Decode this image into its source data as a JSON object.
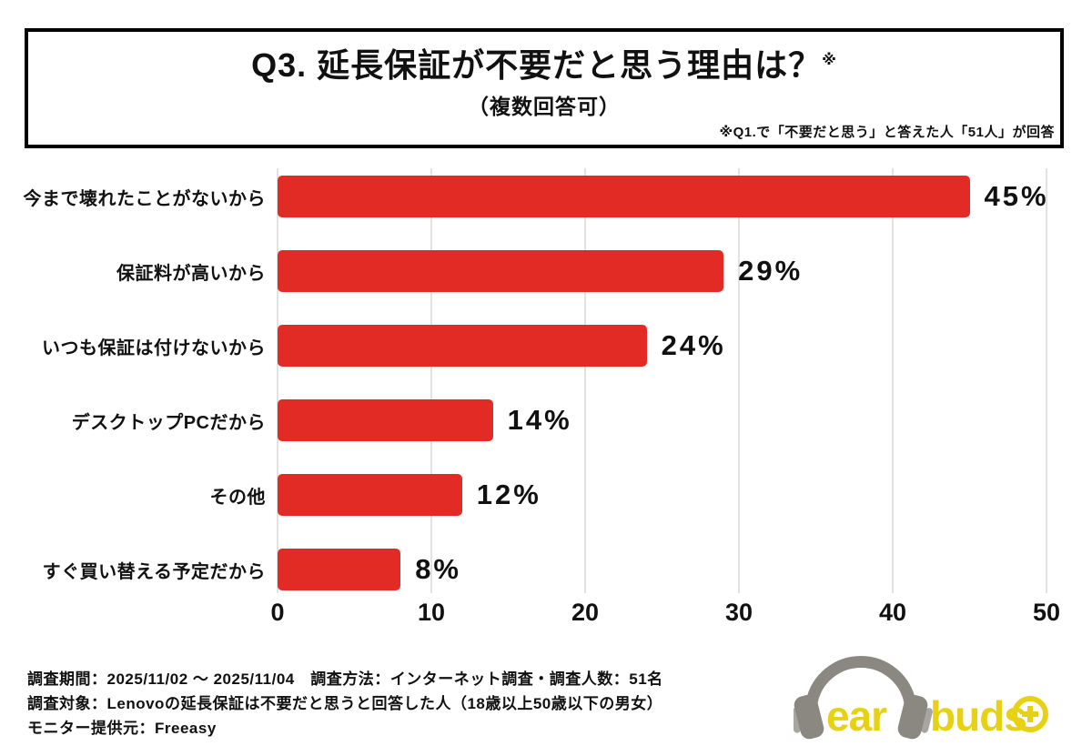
{
  "header": {
    "title": "Q3. 延長保証が不要だと思う理由は？",
    "title_ref_mark": "※",
    "subtitle": "（複数回答可）",
    "note": "※Q1.で「不要だと思う」と答えた人「51人」が回答"
  },
  "chart_data": {
    "type": "bar",
    "orientation": "horizontal",
    "title": "Q3. 延長保証が不要だと思う理由は？（複数回答可）",
    "categories": [
      "今まで壊れたことがないから",
      "保証料が高いから",
      "いつも保証は付けないから",
      "デスクトップPCだから",
      "その他",
      "すぐ買い替える予定だから"
    ],
    "values": [
      45,
      29,
      24,
      14,
      12,
      8
    ],
    "value_labels": [
      "45%",
      "29%",
      "24%",
      "14%",
      "12%",
      "8%"
    ],
    "x_ticks": [
      "0",
      "10",
      "20",
      "30",
      "40",
      "50"
    ],
    "xlim": [
      0,
      50
    ],
    "xlabel": "",
    "ylabel": "",
    "grid": true,
    "legend_position": "none",
    "bar_color": "#e32b26",
    "gridline_color": "#e2e2e2",
    "value_label_color": "#111111"
  },
  "footer": {
    "lines": [
      "調査期間：2025/11/02 ～ 2025/11/04　調査方法：インターネット調査・調査人数：51名",
      "調査対象：Lenovoの延長保証は不要だと思うと回答した人（18歳以上50歳以下の男女）",
      "モニター提供元：Freeasy"
    ]
  },
  "logo": {
    "text_ear": "ear",
    "text_buds": "buds",
    "yellow": "#e7d114",
    "gray": "#8b8781"
  }
}
